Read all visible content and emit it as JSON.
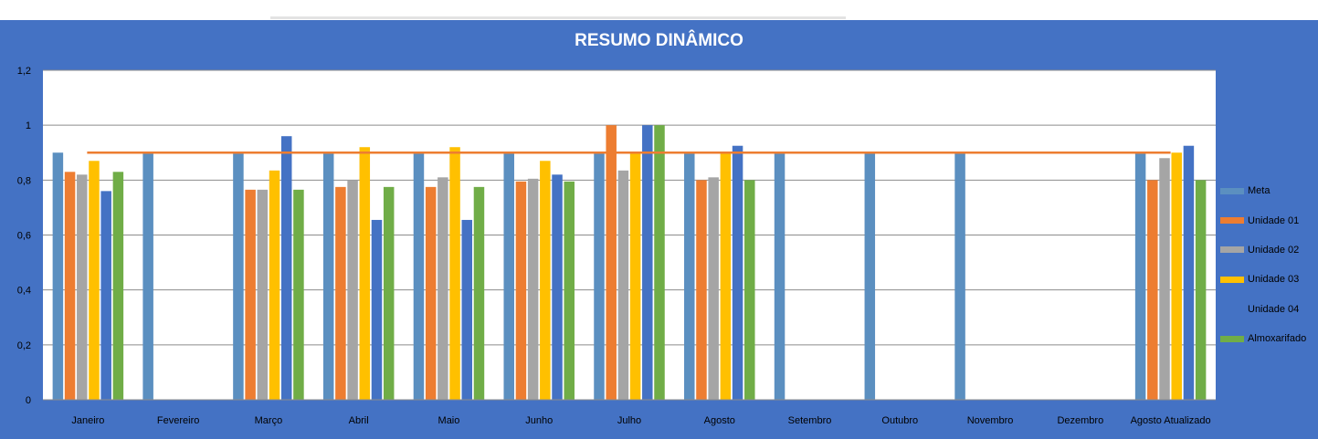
{
  "chart_data": {
    "type": "bar",
    "title": "RESUMO DINÂMICO",
    "categories": [
      "Janeiro",
      "Fevereiro",
      "Março",
      "Abril",
      "Maio",
      "Junho",
      "Julho",
      "Agosto",
      "Setembro",
      "Outubro",
      "Novembro",
      "Dezembro",
      "Agosto Atualizado"
    ],
    "ylim": [
      0,
      1.2
    ],
    "yticks": [
      "0",
      "0,2",
      "0,4",
      "0,6",
      "0,8",
      "1",
      "1,2"
    ],
    "grid": true,
    "legend_position": "right",
    "series": [
      {
        "name": "Meta",
        "color": "#5b8fc0",
        "values": [
          0.9,
          0.9,
          0.9,
          0.9,
          0.9,
          0.9,
          0.9,
          0.9,
          0.9,
          0.9,
          0.9,
          null,
          0.9
        ]
      },
      {
        "name": "Unidade 01",
        "color": "#ed7d31",
        "values": [
          0.83,
          null,
          0.765,
          0.775,
          0.775,
          0.795,
          1.0,
          0.8,
          null,
          null,
          null,
          null,
          0.8
        ]
      },
      {
        "name": "Unidade 02",
        "color": "#a5a5a5",
        "values": [
          0.82,
          null,
          0.765,
          0.8,
          0.81,
          0.805,
          0.835,
          0.81,
          null,
          null,
          null,
          null,
          0.88
        ]
      },
      {
        "name": "Unidade 03",
        "color": "#ffc000",
        "values": [
          0.87,
          null,
          0.835,
          0.92,
          0.92,
          0.87,
          0.9,
          0.9,
          null,
          null,
          null,
          null,
          0.9
        ]
      },
      {
        "name": "Unidade 04",
        "color": "#4472c4",
        "values": [
          0.76,
          null,
          0.96,
          0.655,
          0.655,
          0.82,
          1.0,
          0.925,
          null,
          null,
          null,
          null,
          0.925
        ]
      },
      {
        "name": "Almoxarifado",
        "color": "#70ad47",
        "values": [
          0.83,
          null,
          0.765,
          0.775,
          0.775,
          0.795,
          1.0,
          0.8,
          null,
          null,
          null,
          null,
          0.8
        ]
      }
    ],
    "reference_line": {
      "value": 0.9,
      "color": "#ed7d31"
    }
  }
}
